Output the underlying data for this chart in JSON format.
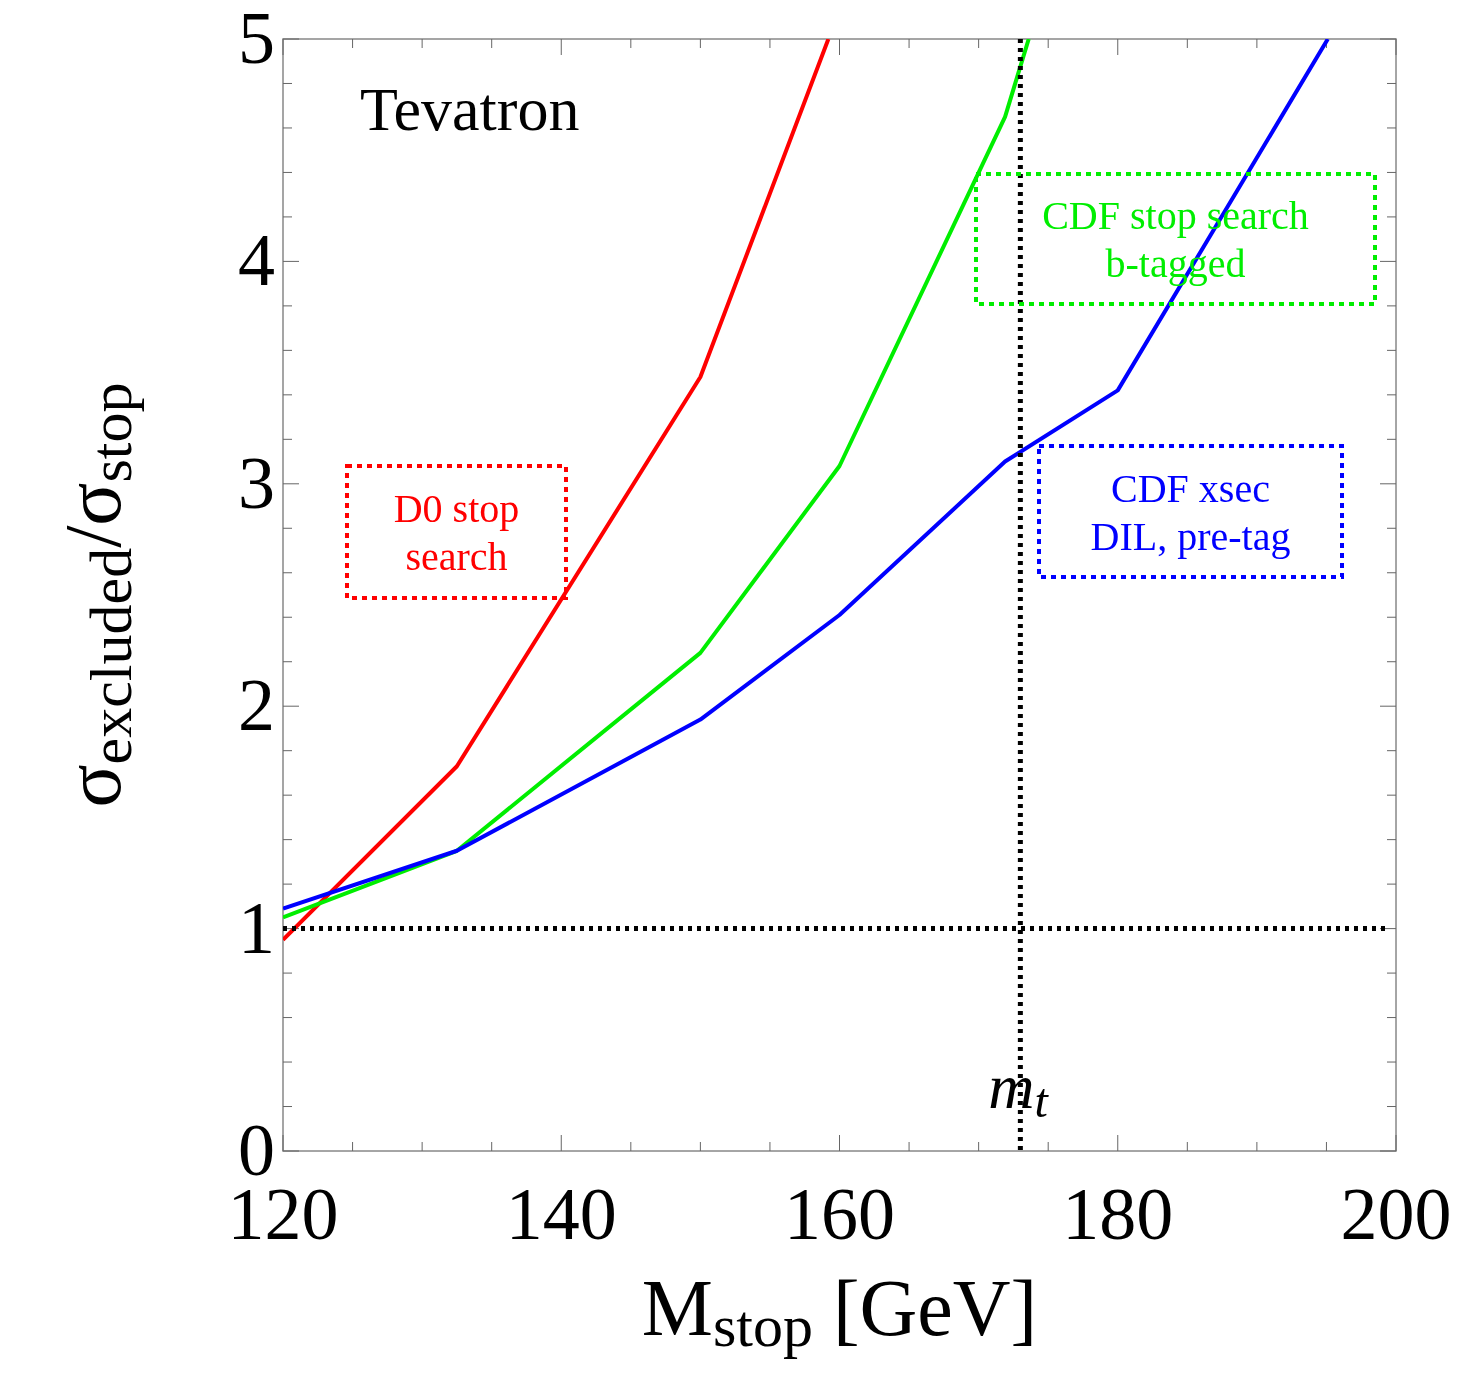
{
  "chart_data": {
    "type": "line",
    "xlabel": "M$_{stop}$  [GeV]",
    "ylabel": "σ$_{excluded}$/σ$_{stop}$",
    "xlim": [
      120,
      200
    ],
    "ylim": [
      0,
      5
    ],
    "xticks": [
      120,
      {
        "value": 125,
        "label": null
      },
      {
        "value": 130,
        "label": null
      },
      {
        "value": 135,
        "label": null
      },
      140,
      {
        "value": 145,
        "label": null
      },
      {
        "value": 150,
        "label": null
      },
      {
        "value": 155,
        "label": null
      },
      160,
      {
        "value": 165,
        "label": null
      },
      {
        "value": 170,
        "label": null
      },
      {
        "value": 175,
        "label": null
      },
      180,
      {
        "value": 185,
        "label": null
      },
      {
        "value": 190,
        "label": null
      },
      {
        "value": 195,
        "label": null
      },
      200
    ],
    "yticks": [
      0,
      {
        "value": 0.2,
        "label": null
      },
      {
        "value": 0.4,
        "label": null
      },
      {
        "value": 0.6,
        "label": null
      },
      {
        "value": 0.8,
        "label": null
      },
      1,
      {
        "value": 1.2,
        "label": null
      },
      {
        "value": 1.4,
        "label": null
      },
      {
        "value": 1.6,
        "label": null
      },
      {
        "value": 1.8,
        "label": null
      },
      2,
      {
        "value": 2.2,
        "label": null
      },
      {
        "value": 2.4,
        "label": null
      },
      {
        "value": 2.6,
        "label": null
      },
      {
        "value": 2.8,
        "label": null
      },
      3,
      {
        "value": 3.2,
        "label": null
      },
      {
        "value": 3.4,
        "label": null
      },
      {
        "value": 3.6,
        "label": null
      },
      {
        "value": 3.8,
        "label": null
      },
      4,
      {
        "value": 4.2,
        "label": null
      },
      {
        "value": 4.4,
        "label": null
      },
      {
        "value": 4.6,
        "label": null
      },
      {
        "value": 4.8,
        "label": null
      },
      5
    ],
    "grid": false,
    "legend": false,
    "marker": "none",
    "line_style": "solid",
    "series": [
      {
        "name": "D0 stop\nsearch",
        "color": "#ff0000",
        "x": [
          120,
          132.5,
          150,
          159.2
        ],
        "values": [
          0.95,
          1.73,
          3.48,
          5
        ]
      },
      {
        "name": "CDF stop search\nb-tagged",
        "color": "#00ee00",
        "x": [
          120,
          132.5,
          150,
          160,
          171.9,
          173.6
        ],
        "values": [
          1.05,
          1.35,
          2.24,
          3.08,
          4.65,
          5
        ]
      },
      {
        "name": "CDF xsec\nDIL, pre-tag",
        "color": "#0000ff",
        "x": [
          120,
          132.5,
          150,
          160,
          171.9,
          180,
          195.1
        ],
        "values": [
          1.09,
          1.35,
          1.94,
          2.41,
          3.1,
          3.42,
          5
        ]
      }
    ],
    "ref_lines": [
      {
        "axis": "y",
        "value": 1,
        "label": null,
        "color": "#000000",
        "line_style": "dotted"
      },
      {
        "axis": "x",
        "value": 173,
        "label": "m$_{t}$",
        "color": "#000000",
        "line_style": "dotted"
      }
    ],
    "annotations": [
      "Tevatron"
    ]
  }
}
